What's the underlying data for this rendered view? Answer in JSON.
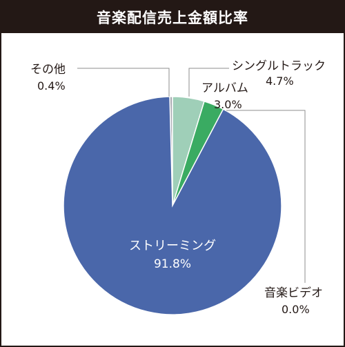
{
  "title": "音楽配信売上金額比率",
  "chart_data": {
    "type": "pie",
    "title": "音楽配信売上金額比率",
    "slices": [
      {
        "label": "その他",
        "value": 0.4,
        "value_text": "0.4%",
        "color": "#a9aab2"
      },
      {
        "label": "シングルトラック",
        "value": 4.7,
        "value_text": "4.7%",
        "color": "#9fcfb8"
      },
      {
        "label": "アルバム",
        "value": 3.0,
        "value_text": "3.0%",
        "color": "#3aab62"
      },
      {
        "label": "音楽ビデオ",
        "value": 0.0,
        "value_text": "0.0%",
        "color": "#2e8fc9"
      },
      {
        "label": "ストリーミング",
        "value": 91.8,
        "value_text": "91.8%",
        "color": "#4a67aa"
      }
    ]
  }
}
